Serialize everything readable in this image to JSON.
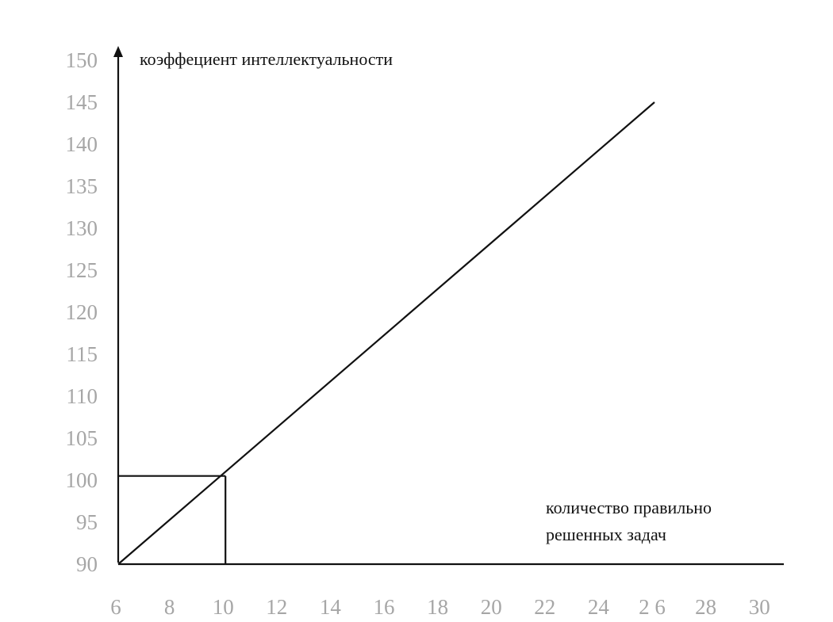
{
  "chart_data": {
    "type": "line",
    "title": "",
    "ylabel": "коэффециент интеллектуальности",
    "xlabel_lines": [
      "количество правильно",
      "решенных задач"
    ],
    "x_ticks": [
      "6",
      "8",
      "10",
      "12",
      "14",
      "16",
      "18",
      "20",
      "22",
      "24",
      "2 6",
      "28",
      "30"
    ],
    "x_tick_values": [
      6,
      8,
      10,
      12,
      14,
      16,
      18,
      20,
      22,
      24,
      26,
      28,
      30
    ],
    "y_ticks": [
      "90",
      "95",
      "100",
      "105",
      "110",
      "115",
      "120",
      "125",
      "130",
      "135",
      "140",
      "145",
      "150"
    ],
    "y_tick_values": [
      90,
      95,
      100,
      105,
      110,
      115,
      120,
      125,
      130,
      135,
      140,
      145,
      150
    ],
    "xlim": [
      6,
      31
    ],
    "ylim": [
      90,
      150
    ],
    "grid": false,
    "legend": "none",
    "series": [
      {
        "x": [
          6,
          26
        ],
        "y": [
          90,
          145
        ]
      }
    ],
    "guide": {
      "x": 10,
      "y": 100.5
    },
    "colors": {
      "line": "#111111",
      "tick_labels": "#a6a6a6"
    }
  }
}
